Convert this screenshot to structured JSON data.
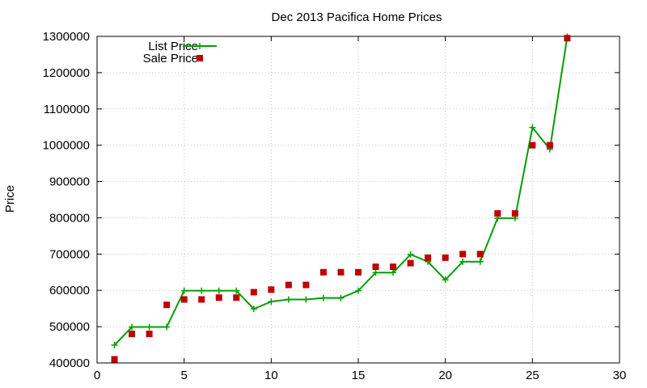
{
  "chart_data": {
    "type": "line",
    "title": "Dec 2013 Pacifica Home Prices",
    "xlabel": "",
    "ylabel": "Price",
    "xlim": [
      0,
      30
    ],
    "ylim": [
      400000,
      1300000
    ],
    "xticks": [
      0,
      5,
      10,
      15,
      20,
      25,
      30
    ],
    "yticks": [
      400000,
      500000,
      600000,
      700000,
      800000,
      900000,
      1000000,
      1100000,
      1200000,
      1300000
    ],
    "grid": true,
    "legend_position": "top-left",
    "series": [
      {
        "name": "List Price",
        "style": "lines+points",
        "marker": "plus",
        "color": "#00a000",
        "x": [
          1,
          2,
          3,
          4,
          5,
          6,
          7,
          8,
          9,
          10,
          11,
          12,
          13,
          14,
          15,
          16,
          17,
          18,
          19,
          20,
          21,
          22,
          23,
          24,
          25,
          26,
          27
        ],
        "y": [
          449000,
          499000,
          499000,
          499000,
          599000,
          599000,
          599000,
          599000,
          549000,
          569000,
          575000,
          575000,
          579000,
          579000,
          599000,
          649000,
          649000,
          699000,
          679000,
          629000,
          679000,
          679000,
          799000,
          799000,
          1049000,
          989000,
          1299000
        ]
      },
      {
        "name": "Sale Price",
        "style": "points",
        "marker": "square",
        "color": "#c00000",
        "x": [
          1,
          2,
          3,
          4,
          5,
          6,
          7,
          8,
          9,
          10,
          11,
          12,
          13,
          14,
          15,
          16,
          17,
          18,
          19,
          20,
          21,
          22,
          23,
          24,
          25,
          26,
          27
        ],
        "y": [
          410000,
          480000,
          480000,
          560000,
          575000,
          575000,
          580000,
          580000,
          595000,
          602000,
          615000,
          615000,
          650000,
          650000,
          650000,
          665000,
          665000,
          675000,
          690000,
          690000,
          700000,
          700000,
          812000,
          812000,
          1000000,
          1000000,
          1295000
        ]
      }
    ]
  }
}
